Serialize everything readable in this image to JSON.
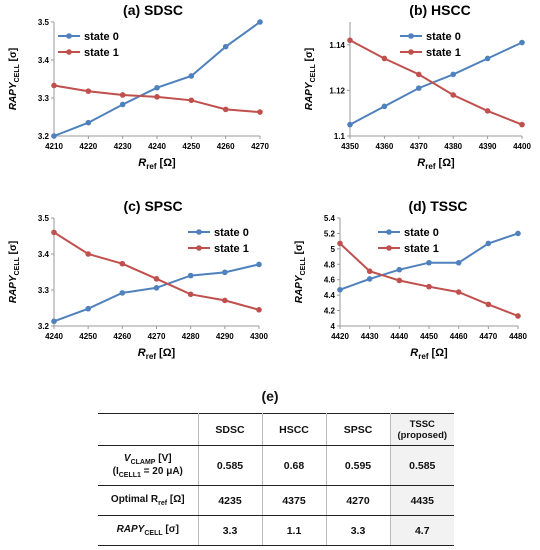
{
  "chart_data": [
    {
      "type": "line",
      "panel_label": "(a) SDSC",
      "xlabel_main": "R",
      "xlabel_sub": "ref",
      "xlabel_unit": " [Ω]",
      "ylabel_main": "RAPY",
      "ylabel_sub": "CELL",
      "ylabel_unit": " [σ]",
      "x": [
        4210,
        4220,
        4230,
        4240,
        4250,
        4260,
        4270
      ],
      "xlim": [
        4210,
        4270
      ],
      "ylim": [
        3.2,
        3.5
      ],
      "yticks": [
        3.2,
        3.3,
        3.4,
        3.5
      ],
      "ytick_labels": [
        "3.2",
        "3.3",
        "3.4",
        "3.5"
      ],
      "legend_position": "top-left",
      "series": [
        {
          "name": "state 0",
          "color": "#4f81bd",
          "values": [
            3.2,
            3.235,
            3.283,
            3.327,
            3.358,
            3.435,
            3.5
          ]
        },
        {
          "name": "state 1",
          "color": "#c0504d",
          "values": [
            3.333,
            3.318,
            3.308,
            3.303,
            3.294,
            3.27,
            3.263
          ]
        }
      ]
    },
    {
      "type": "line",
      "panel_label": "(b) HSCC",
      "xlabel_main": "R",
      "xlabel_sub": "ref",
      "xlabel_unit": " [Ω]",
      "ylabel_main": "RAPY",
      "ylabel_sub": "CELL",
      "ylabel_unit": " [σ]",
      "x": [
        4350,
        4360,
        4370,
        4380,
        4390,
        4400
      ],
      "xlim": [
        4350,
        4400
      ],
      "ylim": [
        1.1,
        1.15
      ],
      "yticks": [
        1.1,
        1.12,
        1.14
      ],
      "ytick_labels": [
        "1.1",
        "1.12",
        "1.14"
      ],
      "legend_position": "top-right",
      "series": [
        {
          "name": "state 0",
          "color": "#4f81bd",
          "values": [
            1.105,
            1.113,
            1.121,
            1.127,
            1.134,
            1.141
          ]
        },
        {
          "name": "state 1",
          "color": "#c0504d",
          "values": [
            1.142,
            1.134,
            1.127,
            1.118,
            1.111,
            1.105
          ]
        }
      ]
    },
    {
      "type": "line",
      "panel_label": "(c) SPSC",
      "xlabel_main": "R",
      "xlabel_sub": "ref",
      "xlabel_unit": " [Ω]",
      "ylabel_main": "RAPY",
      "ylabel_sub": "CELL",
      "ylabel_unit": " [σ]",
      "x": [
        4240,
        4250,
        4260,
        4270,
        4280,
        4290,
        4300
      ],
      "xlim": [
        4240,
        4300
      ],
      "ylim": [
        3.2,
        3.5
      ],
      "yticks": [
        3.2,
        3.3,
        3.4,
        3.5
      ],
      "ytick_labels": [
        "3.2",
        "3.3",
        "3.4",
        "3.5"
      ],
      "legend_position": "top-right",
      "series": [
        {
          "name": "state 0",
          "color": "#4f81bd",
          "values": [
            3.213,
            3.248,
            3.292,
            3.306,
            3.34,
            3.349,
            3.371
          ]
        },
        {
          "name": "state 1",
          "color": "#c0504d",
          "values": [
            3.46,
            3.4,
            3.373,
            3.331,
            3.288,
            3.271,
            3.245
          ]
        }
      ]
    },
    {
      "type": "line",
      "panel_label": "(d) TSSC",
      "xlabel_main": "R",
      "xlabel_sub": "ref",
      "xlabel_unit": " [Ω]",
      "ylabel_main": "RAPY",
      "ylabel_sub": "CELL",
      "ylabel_unit": " [σ]",
      "x": [
        4420,
        4430,
        4440,
        4450,
        4460,
        4470,
        4480
      ],
      "xlim": [
        4420,
        4480
      ],
      "ylim": [
        4.0,
        5.4
      ],
      "yticks": [
        4.0,
        4.2,
        4.4,
        4.6,
        4.8,
        5.0,
        5.2,
        5.4
      ],
      "ytick_labels": [
        "4",
        "4.2",
        "4.4",
        "4.6",
        "4.8",
        "5",
        "5.2",
        "5.4"
      ],
      "legend_position": "top-right",
      "series": [
        {
          "name": "state 0",
          "color": "#4f81bd",
          "values": [
            4.47,
            4.61,
            4.73,
            4.82,
            4.82,
            5.07,
            5.2
          ]
        },
        {
          "name": "state 1",
          "color": "#c0504d",
          "values": [
            5.07,
            4.71,
            4.59,
            4.51,
            4.44,
            4.28,
            4.13
          ]
        }
      ]
    },
    {
      "type": "table",
      "panel_label": "(e)",
      "columns": [
        "",
        "SDSC",
        "HSCC",
        "SPSC",
        "TSSC (proposed)"
      ],
      "header": {
        "sdsc": "SDSC",
        "hscc": "HSCC",
        "spsc": "SPSC",
        "tssc": "TSSC",
        "tssc_note": "(proposed)"
      },
      "rows": {
        "vclamp": {
          "label_main": "V",
          "label_sub": "CLAMP",
          "label_unit": " [V]",
          "cond_open": "(I",
          "cond_sub": "CELL1",
          "cond_rest": " = 20 μA)",
          "values": [
            "0.585",
            "0.68",
            "0.595",
            "0.585"
          ]
        },
        "rref": {
          "label_main": "Optimal R",
          "label_sub": "ref",
          "label_unit": " [Ω]",
          "values": [
            "4235",
            "4375",
            "4270",
            "4435"
          ]
        },
        "rapy": {
          "label_main": "RAPY",
          "label_sub": "CELL",
          "label_unit": " [σ]",
          "values": [
            "3.3",
            "1.1",
            "3.3",
            "4.7"
          ]
        }
      }
    }
  ]
}
